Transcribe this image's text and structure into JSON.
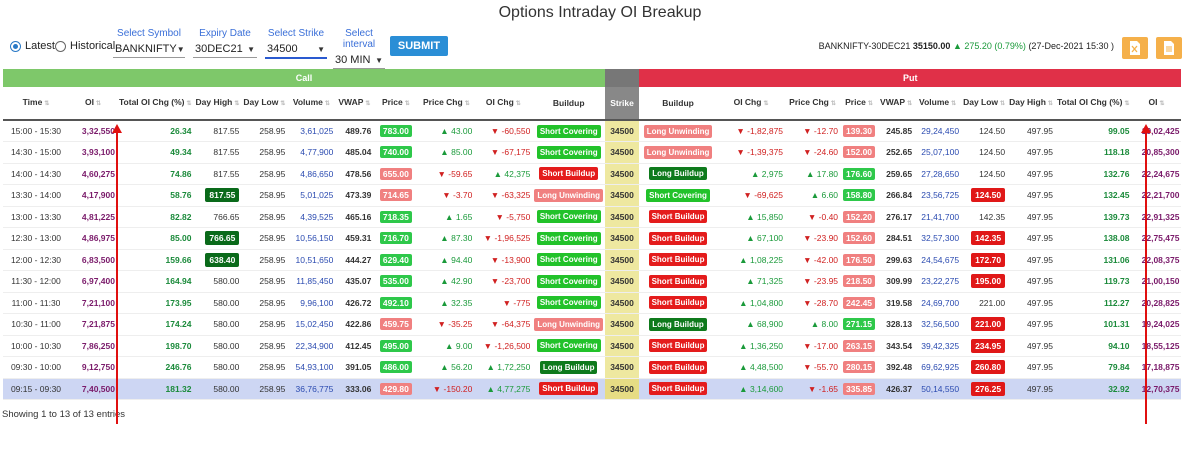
{
  "page": {
    "title": "Options Intraday OI Breakup",
    "footer": "Showing 1 to 13 of 13 entries"
  },
  "controls": {
    "latest_label": "Latest",
    "historical_label": "Historical",
    "symbol": {
      "label": "Select Symbol",
      "value": "BANKNIFTY"
    },
    "expiry": {
      "label": "Expiry Date",
      "value": "30DEC21"
    },
    "strike": {
      "label": "Select Strike",
      "value": "34500"
    },
    "interval": {
      "label": "Select interval",
      "value": "30 MIN"
    },
    "submit_label": "SUBMIT"
  },
  "ticker": {
    "instrument": "BANKNIFTY-30DEC21",
    "price": "35150.00",
    "change": "275.20 (0.79%)",
    "timestamp": "(27-Dec-2021 15:30 )"
  },
  "groups": {
    "call": "Call",
    "put": "Put"
  },
  "columns": [
    "Time",
    "OI",
    "Total OI Chg (%)",
    "Day High",
    "Day Low",
    "Volume",
    "VWAP",
    "Price",
    "Price Chg",
    "OI Chg",
    "Buildup",
    "Strike",
    "Buildup",
    "OI Chg",
    "Price Chg",
    "Price",
    "VWAP",
    "Volume",
    "Day Low",
    "Day High",
    "Total OI Chg (%)",
    "OI"
  ],
  "rows": [
    {
      "time": "15:00 - 15:30",
      "c_oi": "3,32,550",
      "c_tot": "26.34",
      "c_dh": "817.55",
      "c_dl": "258.95",
      "c_vol": "3,61,025",
      "c_vwap": "489.76",
      "c_px": "783.00",
      "c_pxchg": "43.00",
      "c_pxdir": "up",
      "c_oichg": "-60,550",
      "c_oidir": "dn",
      "c_bu": "Short Covering",
      "strike": "34500",
      "p_bu": "Long Unwinding",
      "p_oichg": "-1,82,875",
      "p_oidir": "dn",
      "p_pxchg": "-12.70",
      "p_pxdir": "dn",
      "p_px": "139.30",
      "p_vwap": "245.85",
      "p_vol": "29,24,450",
      "p_dl": "124.50",
      "p_dh": "497.95",
      "p_tot": "99.05",
      "p_oi": "19,02,425"
    },
    {
      "time": "14:30 - 15:00",
      "c_oi": "3,93,100",
      "c_tot": "49.34",
      "c_dh": "817.55",
      "c_dl": "258.95",
      "c_vol": "4,77,900",
      "c_vwap": "485.04",
      "c_px": "740.00",
      "c_pxchg": "85.00",
      "c_pxdir": "up",
      "c_oichg": "-67,175",
      "c_oidir": "dn",
      "c_bu": "Short Covering",
      "strike": "34500",
      "p_bu": "Long Unwinding",
      "p_oichg": "-1,39,375",
      "p_oidir": "dn",
      "p_pxchg": "-24.60",
      "p_pxdir": "dn",
      "p_px": "152.00",
      "p_vwap": "252.65",
      "p_vol": "25,07,100",
      "p_dl": "124.50",
      "p_dh": "497.95",
      "p_tot": "118.18",
      "p_oi": "20,85,300"
    },
    {
      "time": "14:00 - 14:30",
      "c_oi": "4,60,275",
      "c_tot": "74.86",
      "c_dh": "817.55",
      "c_dl": "258.95",
      "c_vol": "4,86,650",
      "c_vwap": "478.56",
      "c_px": "655.00",
      "c_pxchg": "-59.65",
      "c_pxdir": "dn",
      "c_oichg": "42,375",
      "c_oidir": "up",
      "c_bu": "Short Buildup",
      "strike": "34500",
      "p_bu": "Long Buildup",
      "p_oichg": "2,975",
      "p_oidir": "up",
      "p_pxchg": "17.80",
      "p_pxdir": "up",
      "p_px": "176.60",
      "p_vwap": "259.65",
      "p_vol": "27,28,650",
      "p_dl": "124.50",
      "p_dh": "497.95",
      "p_tot": "132.76",
      "p_oi": "22,24,675"
    },
    {
      "time": "13:30 - 14:00",
      "c_oi": "4,17,900",
      "c_tot": "58.76",
      "c_dh": "817.55",
      "c_dhhl": "g",
      "c_dl": "258.95",
      "c_vol": "5,01,025",
      "c_vwap": "473.39",
      "c_px": "714.65",
      "c_pxchg": "-3.70",
      "c_pxdir": "dn",
      "c_oichg": "-63,325",
      "c_oidir": "dn",
      "c_bu": "Long Unwinding",
      "strike": "34500",
      "p_bu": "Short Covering",
      "p_oichg": "-69,625",
      "p_oidir": "dn",
      "p_pxchg": "6.60",
      "p_pxdir": "up",
      "p_px": "158.80",
      "p_vwap": "266.84",
      "p_vol": "23,56,725",
      "p_dl": "124.50",
      "p_dlhl": "r",
      "p_dh": "497.95",
      "p_tot": "132.45",
      "p_oi": "22,21,700"
    },
    {
      "time": "13:00 - 13:30",
      "c_oi": "4,81,225",
      "c_tot": "82.82",
      "c_dh": "766.65",
      "c_dl": "258.95",
      "c_vol": "4,39,525",
      "c_vwap": "465.16",
      "c_px": "718.35",
      "c_pxchg": "1.65",
      "c_pxdir": "up",
      "c_oichg": "-5,750",
      "c_oidir": "dn",
      "c_bu": "Short Covering",
      "strike": "34500",
      "p_bu": "Short Buildup",
      "p_oichg": "15,850",
      "p_oidir": "up",
      "p_pxchg": "-0.40",
      "p_pxdir": "dn",
      "p_px": "152.20",
      "p_vwap": "276.17",
      "p_vol": "21,41,700",
      "p_dl": "142.35",
      "p_dh": "497.95",
      "p_tot": "139.73",
      "p_oi": "22,91,325"
    },
    {
      "time": "12:30 - 13:00",
      "c_oi": "4,86,975",
      "c_tot": "85.00",
      "c_dh": "766.65",
      "c_dhhl": "g",
      "c_dl": "258.95",
      "c_vol": "10,56,150",
      "c_vwap": "459.31",
      "c_px": "716.70",
      "c_pxchg": "87.30",
      "c_pxdir": "up",
      "c_oichg": "-1,96,525",
      "c_oidir": "dn",
      "c_bu": "Short Covering",
      "strike": "34500",
      "p_bu": "Short Buildup",
      "p_oichg": "67,100",
      "p_oidir": "up",
      "p_pxchg": "-23.90",
      "p_pxdir": "dn",
      "p_px": "152.60",
      "p_vwap": "284.51",
      "p_vol": "32,57,300",
      "p_dl": "142.35",
      "p_dlhl": "r",
      "p_dh": "497.95",
      "p_tot": "138.08",
      "p_oi": "22,75,475"
    },
    {
      "time": "12:00 - 12:30",
      "c_oi": "6,83,500",
      "c_tot": "159.66",
      "c_dh": "638.40",
      "c_dhhl": "g",
      "c_dl": "258.95",
      "c_vol": "10,51,650",
      "c_vwap": "444.27",
      "c_px": "629.40",
      "c_pxchg": "94.40",
      "c_pxdir": "up",
      "c_oichg": "-13,900",
      "c_oidir": "dn",
      "c_bu": "Short Covering",
      "strike": "34500",
      "p_bu": "Short Buildup",
      "p_oichg": "1,08,225",
      "p_oidir": "up",
      "p_pxchg": "-42.00",
      "p_pxdir": "dn",
      "p_px": "176.50",
      "p_vwap": "299.63",
      "p_vol": "24,54,675",
      "p_dl": "172.70",
      "p_dlhl": "r",
      "p_dh": "497.95",
      "p_tot": "131.06",
      "p_oi": "22,08,375"
    },
    {
      "time": "11:30 - 12:00",
      "c_oi": "6,97,400",
      "c_tot": "164.94",
      "c_dh": "580.00",
      "c_dl": "258.95",
      "c_vol": "11,85,450",
      "c_vwap": "435.07",
      "c_px": "535.00",
      "c_pxchg": "42.90",
      "c_pxdir": "up",
      "c_oichg": "-23,700",
      "c_oidir": "dn",
      "c_bu": "Short Covering",
      "strike": "34500",
      "p_bu": "Short Buildup",
      "p_oichg": "71,325",
      "p_oidir": "up",
      "p_pxchg": "-23.95",
      "p_pxdir": "dn",
      "p_px": "218.50",
      "p_vwap": "309.99",
      "p_vol": "23,22,275",
      "p_dl": "195.00",
      "p_dlhl": "r",
      "p_dh": "497.95",
      "p_tot": "119.73",
      "p_oi": "21,00,150"
    },
    {
      "time": "11:00 - 11:30",
      "c_oi": "7,21,100",
      "c_tot": "173.95",
      "c_dh": "580.00",
      "c_dl": "258.95",
      "c_vol": "9,96,100",
      "c_vwap": "426.72",
      "c_px": "492.10",
      "c_pxchg": "32.35",
      "c_pxdir": "up",
      "c_oichg": "-775",
      "c_oidir": "dn",
      "c_bu": "Short Covering",
      "strike": "34500",
      "p_bu": "Short Buildup",
      "p_oichg": "1,04,800",
      "p_oidir": "up",
      "p_pxchg": "-28.70",
      "p_pxdir": "dn",
      "p_px": "242.45",
      "p_vwap": "319.58",
      "p_vol": "24,69,700",
      "p_dl": "221.00",
      "p_dh": "497.95",
      "p_tot": "112.27",
      "p_oi": "20,28,825"
    },
    {
      "time": "10:30 - 11:00",
      "c_oi": "7,21,875",
      "c_tot": "174.24",
      "c_dh": "580.00",
      "c_dl": "258.95",
      "c_vol": "15,02,450",
      "c_vwap": "422.86",
      "c_px": "459.75",
      "c_pxchg": "-35.25",
      "c_pxdir": "dn",
      "c_oichg": "-64,375",
      "c_oidir": "dn",
      "c_bu": "Long Unwinding",
      "strike": "34500",
      "p_bu": "Long Buildup",
      "p_oichg": "68,900",
      "p_oidir": "up",
      "p_pxchg": "8.00",
      "p_pxdir": "up",
      "p_px": "271.15",
      "p_vwap": "328.13",
      "p_vol": "32,56,500",
      "p_dl": "221.00",
      "p_dlhl": "r",
      "p_dh": "497.95",
      "p_tot": "101.31",
      "p_oi": "19,24,025"
    },
    {
      "time": "10:00 - 10:30",
      "c_oi": "7,86,250",
      "c_tot": "198.70",
      "c_dh": "580.00",
      "c_dl": "258.95",
      "c_vol": "22,34,900",
      "c_vwap": "412.45",
      "c_px": "495.00",
      "c_pxchg": "9.00",
      "c_pxdir": "up",
      "c_oichg": "-1,26,500",
      "c_oidir": "dn",
      "c_bu": "Short Covering",
      "strike": "34500",
      "p_bu": "Short Buildup",
      "p_oichg": "1,36,250",
      "p_oidir": "up",
      "p_pxchg": "-17.00",
      "p_pxdir": "dn",
      "p_px": "263.15",
      "p_vwap": "343.54",
      "p_vol": "39,42,325",
      "p_dl": "234.95",
      "p_dlhl": "r",
      "p_dh": "497.95",
      "p_tot": "94.10",
      "p_oi": "18,55,125"
    },
    {
      "time": "09:30 - 10:00",
      "c_oi": "9,12,750",
      "c_tot": "246.76",
      "c_dh": "580.00",
      "c_dl": "258.95",
      "c_vol": "54,93,100",
      "c_vwap": "391.05",
      "c_px": "486.00",
      "c_pxchg": "56.20",
      "c_pxdir": "up",
      "c_oichg": "1,72,250",
      "c_oidir": "up",
      "c_bu": "Long Buildup",
      "strike": "34500",
      "p_bu": "Short Buildup",
      "p_oichg": "4,48,500",
      "p_oidir": "up",
      "p_pxchg": "-55.70",
      "p_pxdir": "dn",
      "p_px": "280.15",
      "p_vwap": "392.48",
      "p_vol": "69,62,925",
      "p_dl": "260.80",
      "p_dlhl": "r",
      "p_dh": "497.95",
      "p_tot": "79.84",
      "p_oi": "17,18,875"
    },
    {
      "time": "09:15 - 09:30",
      "c_oi": "7,40,500",
      "c_tot": "181.32",
      "c_dh": "580.00",
      "c_dl": "258.95",
      "c_vol": "36,76,775",
      "c_vwap": "333.06",
      "c_px": "429.80",
      "c_pxchg": "-150.20",
      "c_pxdir": "dn",
      "c_oichg": "4,77,275",
      "c_oidir": "up",
      "c_bu": "Short Buildup",
      "strike": "34500",
      "p_bu": "Short Buildup",
      "p_oichg": "3,14,600",
      "p_oidir": "up",
      "p_pxchg": "-1.65",
      "p_pxdir": "dn",
      "p_px": "335.85",
      "p_vwap": "426.37",
      "p_vol": "50,14,550",
      "p_dl": "276.25",
      "p_dlhl": "r",
      "p_dh": "497.95",
      "p_tot": "32.92",
      "p_oi": "12,70,375"
    }
  ],
  "colors": {
    "call_header": "#7ec86a",
    "put_header": "#e03048",
    "strike_col": "#eee8a0",
    "annotation_arrow": "#e01010"
  }
}
